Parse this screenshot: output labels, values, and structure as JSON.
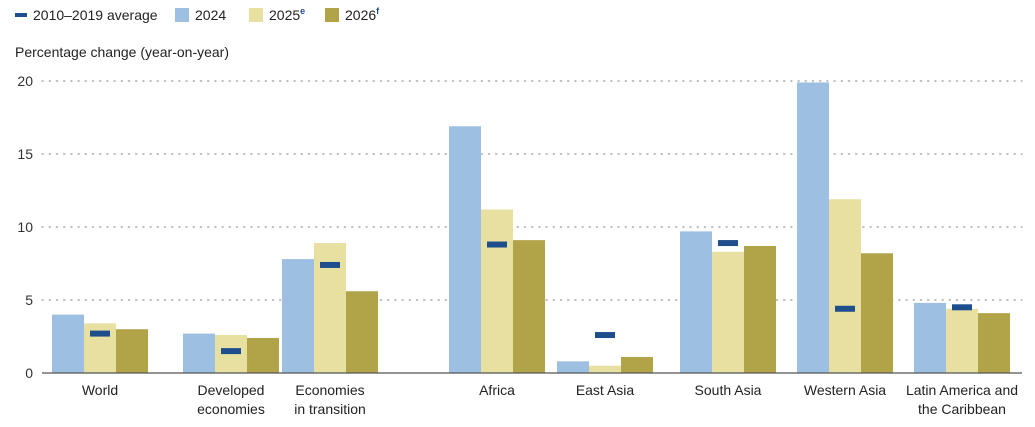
{
  "chart_data": {
    "type": "bar",
    "ylabel": "Percentage change (year-on-year)",
    "ylim": [
      0,
      20
    ],
    "yticks": [
      0,
      5,
      10,
      15,
      20
    ],
    "grid": true,
    "legend_position": "top-left",
    "categories": [
      [
        "World"
      ],
      [
        "Developed",
        "economies"
      ],
      [
        "Economies",
        "in transition"
      ],
      [
        "Africa"
      ],
      [
        "East Asia"
      ],
      [
        "South Asia"
      ],
      [
        "Western Asia"
      ],
      [
        "Latin America and",
        "the Caribbean"
      ]
    ],
    "series": [
      {
        "name": "2024",
        "sup": "",
        "color": "#9dbfe2",
        "values": [
          4.0,
          2.7,
          7.8,
          16.9,
          0.8,
          9.7,
          19.9,
          4.8
        ]
      },
      {
        "name": "2025",
        "sup": "e",
        "color": "#e8e0a0",
        "values": [
          3.4,
          2.6,
          8.9,
          11.2,
          0.5,
          8.3,
          11.9,
          4.4
        ]
      },
      {
        "name": "2026",
        "sup": "f",
        "color": "#b0a348",
        "values": [
          3.0,
          2.4,
          5.6,
          9.1,
          1.1,
          8.7,
          8.2,
          4.1
        ]
      }
    ],
    "average": {
      "name": "2010–2019 average",
      "color": "#1f4e8c",
      "values": [
        2.7,
        1.5,
        7.4,
        8.8,
        2.6,
        8.9,
        4.4,
        4.5
      ]
    }
  }
}
